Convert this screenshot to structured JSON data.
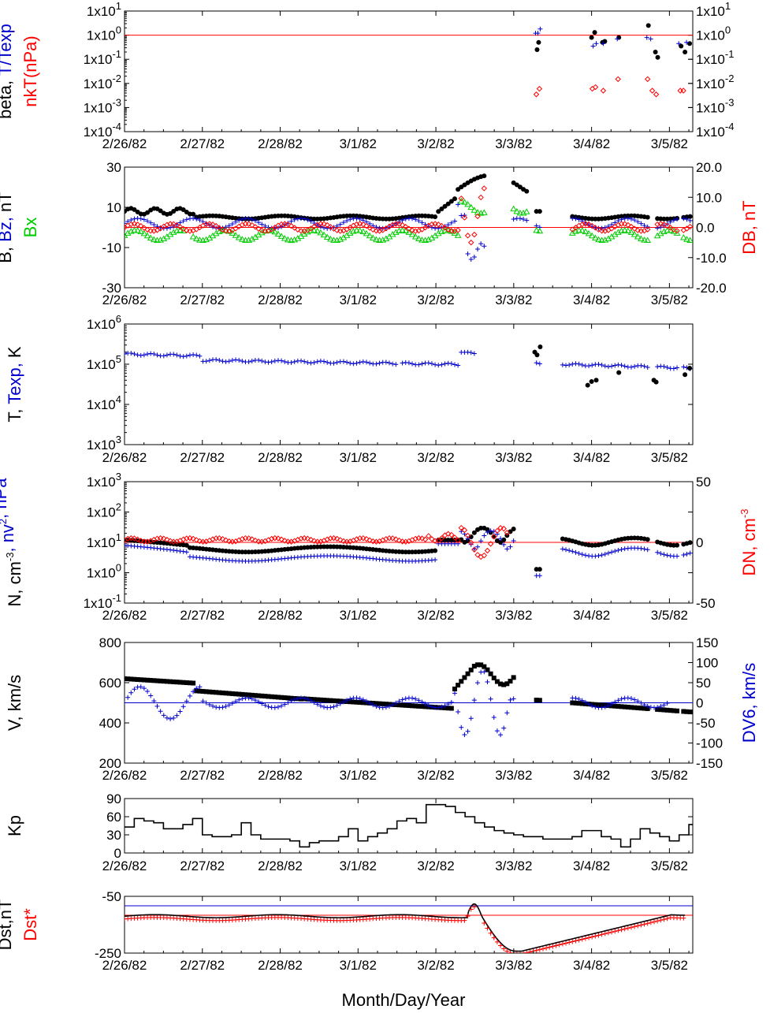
{
  "x_axis": {
    "title": "Month/Day/Year",
    "tick_labels": [
      "2/26/82",
      "2/27/82",
      "2/28/82",
      "3/1/82",
      "3/2/82",
      "3/3/82",
      "3/4/82",
      "3/5/82"
    ],
    "range_days": [
      0,
      7.3
    ]
  },
  "colors": {
    "black": "#000000",
    "blue": "#0000cc",
    "red": "#ff0000",
    "green": "#00cc00"
  },
  "chart_data": [
    {
      "id": "beta",
      "type": "scatter",
      "scale": "log",
      "ylim_exp": [
        -4,
        1
      ],
      "left_ticks": [
        "1x10^1",
        "1x10^0",
        "1x10^-1",
        "1x10^-2",
        "1x10^-3",
        "1x10^-4"
      ],
      "right_ticks": [
        "1x10^1",
        "1x10^0",
        "1x10^-1",
        "1x10^-2",
        "1x10^-3",
        "1x10^-4"
      ],
      "left_label": [
        {
          "text": "beta, ",
          "color": "#000000"
        },
        {
          "text": "T/Texp",
          "color": "#0000cc"
        }
      ],
      "left_label2": [
        {
          "text": "nkT(nPa)",
          "color": "#ff0000"
        }
      ],
      "hline": {
        "value": 1,
        "color": "#ff0000"
      },
      "series": [
        {
          "marker": "dot",
          "color": "#000000",
          "points": [
            [
              5.3,
              0.25
            ],
            [
              5.32,
              0.5
            ],
            [
              6.0,
              0.8
            ],
            [
              6.04,
              1.3
            ],
            [
              6.14,
              0.5
            ],
            [
              6.17,
              0.55
            ],
            [
              6.35,
              0.8
            ],
            [
              6.73,
              2.5
            ],
            [
              6.82,
              0.2
            ],
            [
              6.85,
              0.12
            ],
            [
              7.15,
              0.35
            ],
            [
              7.2,
              0.2
            ],
            [
              7.26,
              0.45
            ]
          ]
        },
        {
          "marker": "plus",
          "color": "#0000cc",
          "points": [
            [
              5.28,
              1.2
            ],
            [
              5.31,
              1.2
            ],
            [
              5.34,
              1.8
            ],
            [
              6.02,
              0.35
            ],
            [
              6.06,
              0.45
            ],
            [
              6.15,
              0.45
            ],
            [
              6.33,
              0.7
            ],
            [
              6.71,
              0.8
            ],
            [
              6.76,
              0.7
            ],
            [
              7.12,
              0.45
            ],
            [
              7.22,
              0.5
            ]
          ]
        },
        {
          "marker": "diamond",
          "color": "#ff0000",
          "points": [
            [
              5.29,
              0.0035
            ],
            [
              5.33,
              0.006
            ],
            [
              6.01,
              0.006
            ],
            [
              6.05,
              0.007
            ],
            [
              6.15,
              0.005
            ],
            [
              6.34,
              0.015
            ],
            [
              6.72,
              0.015
            ],
            [
              6.78,
              0.005
            ],
            [
              6.83,
              0.0035
            ],
            [
              7.14,
              0.005
            ],
            [
              7.18,
              0.005
            ]
          ]
        }
      ]
    },
    {
      "id": "field",
      "type": "scatter",
      "scale": "linear",
      "ylim": [
        -30,
        30
      ],
      "ylim_right": [
        -20,
        20
      ],
      "left_ticks": [
        "30",
        "10",
        "-10",
        "-30"
      ],
      "right_ticks": [
        "20.0",
        "10.0",
        "0.0",
        "-10.0",
        "-20.0"
      ],
      "left_label": [
        {
          "text": "B, ",
          "color": "#000000"
        },
        {
          "text": "Bz, ",
          "color": "#0000cc"
        },
        {
          "text": "nT",
          "color": "#000000"
        }
      ],
      "left_label2": [
        {
          "text": "Bx",
          "color": "#00cc00"
        }
      ],
      "right_label": [
        {
          "text": "DB, nT",
          "color": "#ff0000"
        }
      ],
      "hline": {
        "value": 0,
        "color": "#ff0000"
      },
      "series": [
        {
          "name": "B",
          "marker": "dot",
          "color": "#000000",
          "formula": "B",
          "range": [
            0,
            7.3
          ],
          "gaps": [
            [
              4.62,
              4.96
            ],
            [
              5.19,
              5.29
            ],
            [
              5.36,
              5.75
            ],
            [
              6.75,
              6.83
            ],
            [
              7.12,
              7.18
            ]
          ]
        },
        {
          "name": "Bz",
          "marker": "plus",
          "color": "#0000cc",
          "formula": "Bz",
          "range": [
            0,
            7.3
          ],
          "gaps": [
            [
              4.62,
              4.96
            ],
            [
              5.19,
              5.29
            ],
            [
              5.36,
              5.75
            ],
            [
              6.75,
              6.83
            ],
            [
              7.12,
              7.18
            ]
          ]
        },
        {
          "name": "Bx",
          "marker": "triangle",
          "color": "#00cc00",
          "formula": "Bx",
          "range": [
            0,
            7.3
          ],
          "gaps": [
            [
              0.78,
              0.85
            ],
            [
              4.62,
              4.96
            ],
            [
              5.19,
              5.29
            ],
            [
              5.36,
              5.75
            ],
            [
              6.75,
              6.83
            ],
            [
              7.12,
              7.18
            ]
          ]
        },
        {
          "name": "DB",
          "marker": "diamond",
          "color": "#ff0000",
          "formula": "DB",
          "axis": "right",
          "range": [
            0,
            7.3
          ],
          "gaps": [
            [
              4.62,
              5.75
            ],
            [
              6.75,
              6.83
            ],
            [
              7.12,
              7.18
            ]
          ]
        }
      ]
    },
    {
      "id": "temp",
      "type": "scatter",
      "scale": "log",
      "ylim_exp": [
        3,
        6
      ],
      "left_ticks": [
        "1x10^6",
        "1x10^5",
        "1x10^4",
        "1x10^3"
      ],
      "right_ticks": [],
      "left_label": [
        {
          "text": "T, ",
          "color": "#000000"
        },
        {
          "text": "Texp, ",
          "color": "#0000cc"
        },
        {
          "text": "K",
          "color": "#000000"
        }
      ],
      "series": [
        {
          "name": "T",
          "marker": "plus",
          "color": "#0000cc",
          "formula": "T",
          "range": [
            0,
            7.3
          ],
          "gaps": [
            [
              3.5,
              3.55
            ],
            [
              4.5,
              5.25
            ],
            [
              5.36,
              5.6
            ],
            [
              6.75,
              6.82
            ],
            [
              7.12,
              7.18
            ]
          ]
        },
        {
          "marker": "dot",
          "color": "#000000",
          "points": [
            [
              5.27,
              200000
            ],
            [
              5.3,
              170000
            ],
            [
              5.34,
              270000
            ],
            [
              5.95,
              30000
            ],
            [
              6.0,
              37000
            ],
            [
              6.06,
              40000
            ],
            [
              6.35,
              62000
            ],
            [
              6.8,
              40000
            ],
            [
              6.83,
              36000
            ],
            [
              7.2,
              55000
            ],
            [
              7.26,
              80000
            ]
          ]
        }
      ]
    },
    {
      "id": "density",
      "type": "scatter",
      "scale": "log",
      "ylim_exp": [
        -1,
        3
      ],
      "ylim_right": [
        -50,
        50
      ],
      "left_ticks": [
        "1x10^3",
        "1x10^2",
        "1x10^1",
        "1x10^0",
        "1x10^-1"
      ],
      "right_ticks": [
        "50",
        "0",
        "-50"
      ],
      "left_label": [
        {
          "text": "N, cm",
          "color": "#000000"
        },
        {
          "text": "-3",
          "color": "#000000",
          "sup": true
        },
        {
          "text": ", nv",
          "color": "#0000cc"
        },
        {
          "text": "2",
          "color": "#0000cc",
          "sup": true
        },
        {
          "text": ", nPa",
          "color": "#0000cc"
        }
      ],
      "right_label": [
        {
          "text": "DN, cm",
          "color": "#ff0000"
        },
        {
          "text": "-3",
          "color": "#ff0000",
          "sup": true
        }
      ],
      "hline": {
        "value": 10,
        "color": "#ff0000"
      },
      "series": [
        {
          "name": "N",
          "marker": "dot",
          "color": "#000000",
          "formula": "N",
          "range": [
            0,
            7.3
          ],
          "gaps": [
            [
              5.0,
              5.25
            ],
            [
              5.36,
              5.6
            ],
            [
              6.75,
              6.83
            ],
            [
              7.12,
              7.18
            ]
          ]
        },
        {
          "name": "nv2",
          "marker": "plus",
          "color": "#0000cc",
          "formula": "NV",
          "range": [
            0,
            7.3
          ],
          "gaps": [
            [
              5.0,
              5.25
            ],
            [
              5.36,
              5.6
            ],
            [
              6.75,
              6.83
            ],
            [
              7.12,
              7.18
            ]
          ]
        },
        {
          "name": "DN",
          "marker": "diamond",
          "color": "#ff0000",
          "formula": "DN",
          "axis": "right",
          "range": [
            0,
            4.95
          ],
          "gaps": [
            [
              4.5,
              4.52
            ]
          ]
        }
      ]
    },
    {
      "id": "speed",
      "type": "scatter",
      "scale": "linear",
      "ylim": [
        200,
        800
      ],
      "ylim_right": [
        -150,
        150
      ],
      "left_ticks": [
        "800",
        "600",
        "400",
        "200"
      ],
      "right_ticks": [
        "150",
        "100",
        "50",
        "0",
        "-50",
        "-100",
        "-150"
      ],
      "left_label": [
        {
          "text": "V, km/s",
          "color": "#000000"
        }
      ],
      "right_label": [
        {
          "text": "DV6, km/s",
          "color": "#0000cc"
        }
      ],
      "hline": {
        "value": 500,
        "color": "#0000cc"
      },
      "series": [
        {
          "name": "V",
          "marker": "square",
          "color": "#000000",
          "formula": "V",
          "range": [
            0,
            7.3
          ],
          "gaps": [
            [
              5.0,
              5.25
            ],
            [
              5.36,
              5.75
            ],
            [
              6.75,
              6.82
            ],
            [
              7.12,
              7.18
            ]
          ]
        },
        {
          "name": "DV6",
          "marker": "plus",
          "color": "#0000cc",
          "formula": "DV",
          "axis": "right",
          "range": [
            0,
            7.0
          ],
          "gaps": [
            [
              5.0,
              5.75
            ]
          ]
        }
      ]
    },
    {
      "id": "kp",
      "type": "line",
      "scale": "linear",
      "ylim": [
        0,
        90
      ],
      "left_ticks": [
        "90",
        "60",
        "30",
        "0"
      ],
      "right_ticks": [],
      "left_label": [
        {
          "text": "Kp",
          "color": "#000000"
        }
      ],
      "series": [
        {
          "name": "Kp",
          "color": "#000000",
          "step": true,
          "x": [
            0,
            0.125,
            0.25,
            0.375,
            0.5,
            0.625,
            0.75,
            0.875,
            1.0,
            1.125,
            1.25,
            1.375,
            1.5,
            1.625,
            1.75,
            1.875,
            2.0,
            2.125,
            2.25,
            2.375,
            2.5,
            2.625,
            2.75,
            2.875,
            3.0,
            3.125,
            3.25,
            3.375,
            3.5,
            3.625,
            3.75,
            3.875,
            4.0,
            4.125,
            4.25,
            4.375,
            4.5,
            4.625,
            4.75,
            4.875,
            5.0,
            5.125,
            5.25,
            5.375,
            5.5,
            5.625,
            5.75,
            5.875,
            6.0,
            6.125,
            6.25,
            6.375,
            6.5,
            6.625,
            6.75,
            6.875,
            7.0,
            7.125,
            7.25
          ],
          "values": [
            43,
            57,
            53,
            50,
            40,
            40,
            47,
            57,
            30,
            27,
            27,
            30,
            50,
            30,
            23,
            23,
            23,
            20,
            10,
            17,
            20,
            20,
            27,
            40,
            20,
            27,
            33,
            40,
            53,
            57,
            50,
            80,
            80,
            77,
            67,
            60,
            50,
            43,
            37,
            33,
            30,
            27,
            27,
            23,
            23,
            23,
            27,
            37,
            37,
            27,
            23,
            10,
            23,
            40,
            33,
            27,
            20,
            30,
            47
          ]
        }
      ]
    },
    {
      "id": "dst",
      "type": "line",
      "scale": "linear",
      "ylim": [
        -250,
        50
      ],
      "left_ticks": [
        "-50",
        "-250"
      ],
      "right_ticks": [],
      "left_label": [
        {
          "text": "Dst,nT",
          "color": "#000000"
        }
      ],
      "left_label2": [
        {
          "text": "Dst*",
          "color": "#ff0000"
        }
      ],
      "hlines": [
        {
          "value": 0,
          "color": "#0000cc"
        },
        {
          "value": -50,
          "color": "#ff0000"
        }
      ],
      "series": [
        {
          "name": "Dst",
          "color": "#000000",
          "formula": "DST",
          "range": [
            0,
            7.2
          ]
        },
        {
          "name": "Dst*",
          "marker": "plus",
          "color": "#ff0000",
          "formula": "DSTS",
          "range": [
            0,
            7.2
          ],
          "gaps": [
            [
              4.5,
              4.6
            ]
          ]
        }
      ]
    }
  ]
}
